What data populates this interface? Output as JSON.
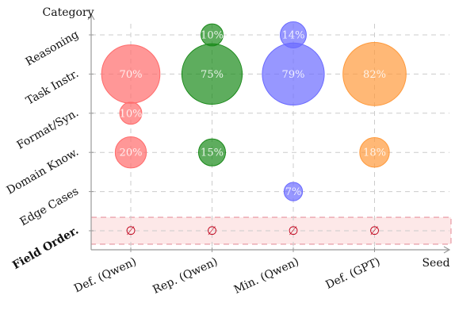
{
  "chart_data": {
    "type": "bubble",
    "xlabel": "Seed",
    "ylabel": "Category",
    "x_categories": [
      "Def. (Qwen)",
      "Rep. (Qwen)",
      "Min. (Qwen)",
      "Def. (GPT)"
    ],
    "y_categories": [
      "Field Order.",
      "Edge Cases",
      "Domain Know.",
      "Format/Syn.",
      "Task Instr.",
      "Reasoning"
    ],
    "grid": true,
    "highlight_row": {
      "category": "Field Order.",
      "color": "#c0001a",
      "fill": "#fde8e8",
      "marker": "∅"
    },
    "series": [
      {
        "x": "Def. (Qwen)",
        "color": "#ff6b6b",
        "points": [
          {
            "category": "Task Instr.",
            "value": 70,
            "label": "70%"
          },
          {
            "category": "Format/Syn.",
            "value": 10,
            "label": "10%"
          },
          {
            "category": "Domain Know.",
            "value": 20,
            "label": "20%"
          }
        ]
      },
      {
        "x": "Rep. (Qwen)",
        "color": "#1a8a1a",
        "points": [
          {
            "category": "Reasoning",
            "value": 10,
            "label": "10%"
          },
          {
            "category": "Task Instr.",
            "value": 75,
            "label": "75%"
          },
          {
            "category": "Domain Know.",
            "value": 15,
            "label": "15%"
          }
        ]
      },
      {
        "x": "Min. (Qwen)",
        "color": "#6b6bff",
        "points": [
          {
            "category": "Reasoning",
            "value": 14,
            "label": "14%"
          },
          {
            "category": "Task Instr.",
            "value": 79,
            "label": "79%"
          },
          {
            "category": "Edge Cases",
            "value": 7,
            "label": "7%"
          }
        ]
      },
      {
        "x": "Def. (GPT)",
        "color": "#ff9a3c",
        "points": [
          {
            "category": "Task Instr.",
            "value": 82,
            "label": "82%"
          },
          {
            "category": "Domain Know.",
            "value": 18,
            "label": "18%"
          }
        ]
      }
    ]
  }
}
